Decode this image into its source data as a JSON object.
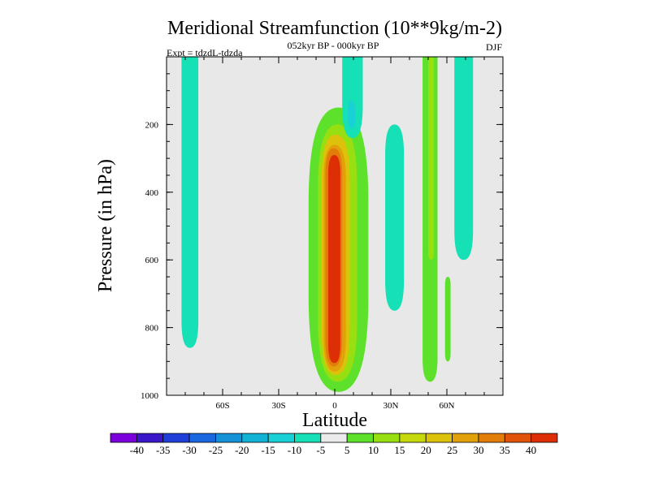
{
  "chart_data": {
    "type": "heatmap",
    "title": "Meridional Streamfunction (10**9kg/m-2)",
    "subtitle": "052kyr BP - 000kyr BP",
    "annotation_left": "Expt = tdzdL-tdzda",
    "annotation_right": "DJF",
    "xlabel": "Latitude",
    "ylabel": "Pressure (in hPa)",
    "xlim": [
      -90,
      90
    ],
    "ylim": [
      0,
      1000
    ],
    "y_inverted": true,
    "x_ticks": [
      {
        "value": -60,
        "label": "60S"
      },
      {
        "value": -30,
        "label": "30S"
      },
      {
        "value": 0,
        "label": "0"
      },
      {
        "value": 30,
        "label": "30N"
      },
      {
        "value": 60,
        "label": "60N"
      }
    ],
    "y_ticks": [
      {
        "value": 200,
        "label": "200"
      },
      {
        "value": 400,
        "label": "400"
      },
      {
        "value": 600,
        "label": "600"
      },
      {
        "value": 800,
        "label": "800"
      },
      {
        "value": 1000,
        "label": "1000"
      }
    ],
    "colorbar": {
      "labels": [
        "-40",
        "-35",
        "-30",
        "-25",
        "-20",
        "-15",
        "-10",
        "-5",
        "5",
        "10",
        "15",
        "20",
        "25",
        "30",
        "35",
        "40"
      ],
      "colors": [
        "#7b00db",
        "#3a17c9",
        "#1f3fd8",
        "#1a68e0",
        "#1591d8",
        "#12b1d6",
        "#19d0d6",
        "#16e0b6",
        "#ebebeb",
        "#5ee12a",
        "#98df12",
        "#c5d90d",
        "#dcc20b",
        "#e2a10a",
        "#e27d09",
        "#e05308",
        "#dd2e05"
      ]
    },
    "contour_regions": [
      {
        "level": 10,
        "color": "#5ee12a",
        "lat_range": [
          -14,
          18
        ],
        "p_range": [
          150,
          990
        ],
        "note": "main positive cell"
      },
      {
        "level": 15,
        "color": "#98df12",
        "lat_range": [
          -9,
          12
        ],
        "p_range": [
          200,
          960
        ]
      },
      {
        "level": 25,
        "color": "#dcc20b",
        "lat_range": [
          -7,
          8
        ],
        "p_range": [
          230,
          940
        ]
      },
      {
        "level": 30,
        "color": "#e2a10a",
        "lat_range": [
          -6,
          6
        ],
        "p_range": [
          260,
          930
        ]
      },
      {
        "level": 35,
        "color": "#e27d09",
        "lat_range": [
          -5,
          4
        ],
        "p_range": [
          270,
          915
        ]
      },
      {
        "level": 40,
        "color": "#dd2e05",
        "lat_range": [
          -3.5,
          3
        ],
        "p_range": [
          290,
          905
        ]
      },
      {
        "level": -10,
        "color": "#16e0b6",
        "lat_range": [
          -82,
          -73
        ],
        "p_range": [
          0,
          860
        ]
      },
      {
        "level": -10,
        "color": "#16e0b6",
        "lat_range": [
          4,
          15
        ],
        "p_range": [
          0,
          240
        ]
      },
      {
        "level": -15,
        "color": "#19d0d6",
        "lat_range": [
          7,
          11
        ],
        "p_range": [
          130,
          210
        ]
      },
      {
        "level": -10,
        "color": "#16e0b6",
        "lat_range": [
          27,
          37
        ],
        "p_range": [
          200,
          750
        ]
      },
      {
        "level": 10,
        "color": "#5ee12a",
        "lat_range": [
          47,
          55
        ],
        "p_range": [
          0,
          960
        ]
      },
      {
        "level": 15,
        "color": "#98df12",
        "lat_range": [
          50,
          53
        ],
        "p_range": [
          0,
          600
        ]
      },
      {
        "level": -10,
        "color": "#16e0b6",
        "lat_range": [
          64,
          74
        ],
        "p_range": [
          0,
          600
        ]
      },
      {
        "level": 10,
        "color": "#5ee12a",
        "lat_range": [
          59,
          62
        ],
        "p_range": [
          650,
          900
        ]
      }
    ]
  }
}
